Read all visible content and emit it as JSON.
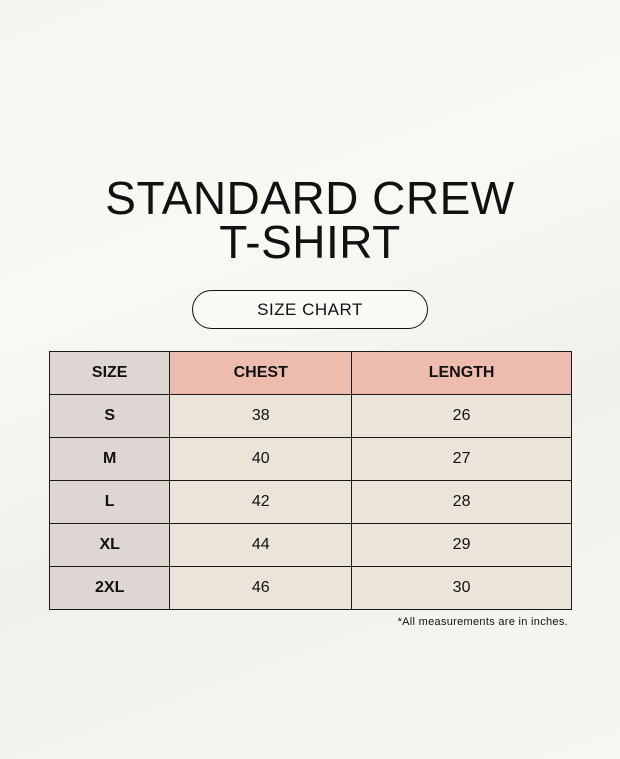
{
  "title": {
    "line1": "STANDARD CREW",
    "line2": "T-SHIRT"
  },
  "subtitle": "SIZE CHART",
  "table": {
    "headers": [
      "SIZE",
      "CHEST",
      "LENGTH"
    ],
    "rows": [
      [
        "S",
        "38",
        "26"
      ],
      [
        "M",
        "40",
        "27"
      ],
      [
        "L",
        "42",
        "28"
      ],
      [
        "XL",
        "44",
        "29"
      ],
      [
        "2XL",
        "46",
        "30"
      ]
    ]
  },
  "note": "*All measurements are in inches.",
  "colors": {
    "header_accent": "#edbcaf",
    "size_column": "#ddd6d3",
    "cell": "#ebe4d9",
    "background": "#f7f5ef"
  }
}
